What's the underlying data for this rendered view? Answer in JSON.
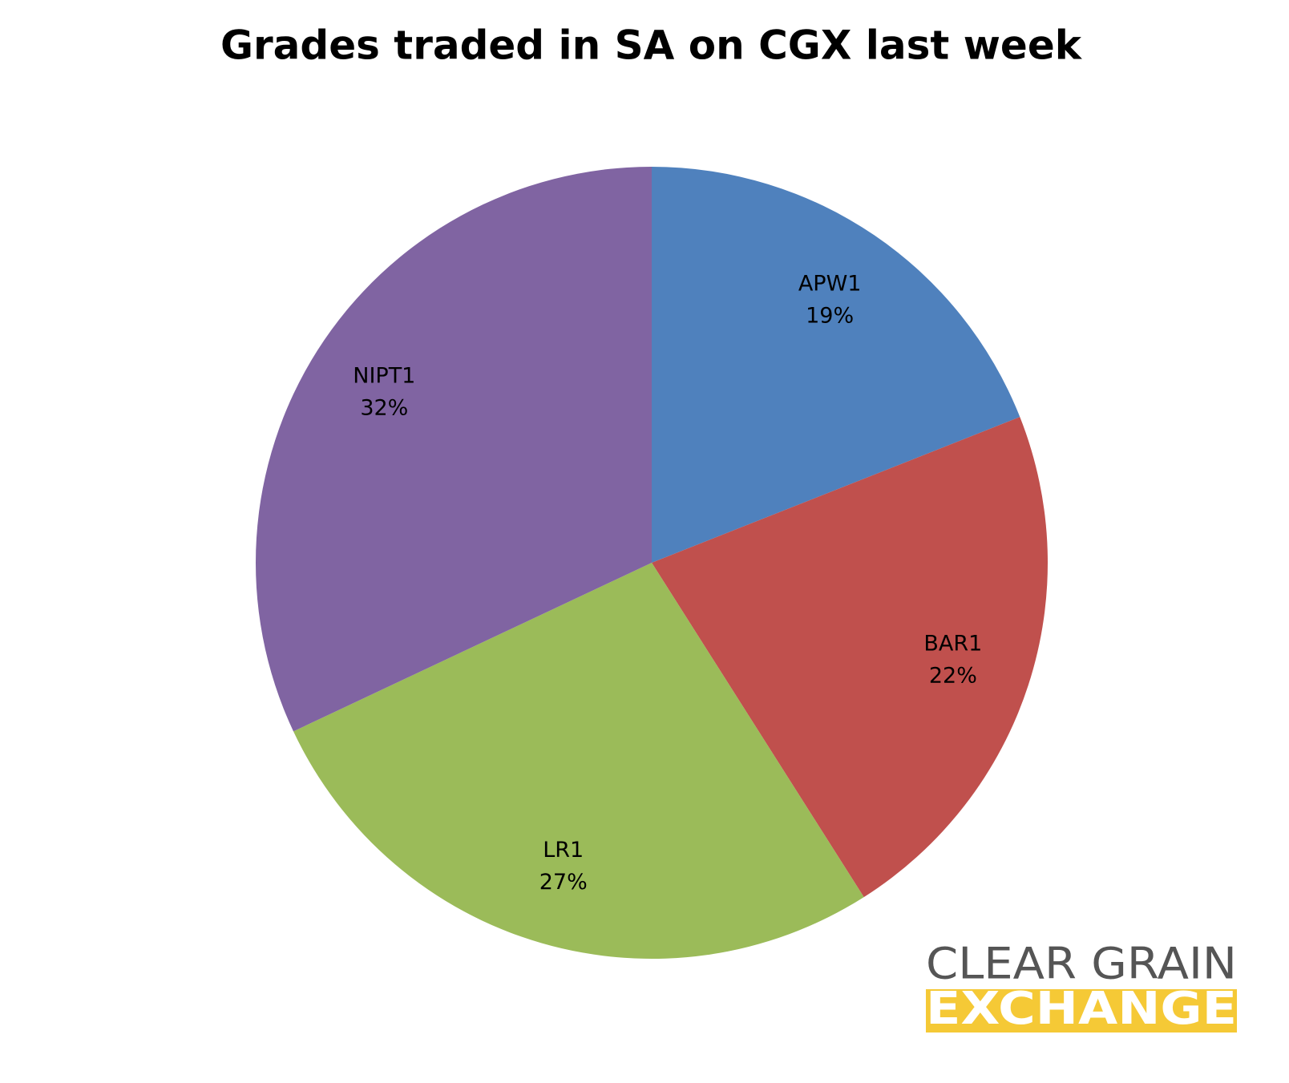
{
  "chart_data": {
    "type": "pie",
    "title": "Grades traded in SA on CGX last week",
    "categories": [
      "APW1",
      "BAR1",
      "LR1",
      "NIPT1"
    ],
    "values": [
      19,
      22,
      27,
      32
    ],
    "value_labels": [
      "19%",
      "22%",
      "27%",
      "32%"
    ],
    "colors": [
      "#4f81bd",
      "#c0504d",
      "#9bbb59",
      "#8064a2"
    ]
  },
  "logo": {
    "line1": "CLEAR GRAIN",
    "line2": "EXCHANGE"
  }
}
